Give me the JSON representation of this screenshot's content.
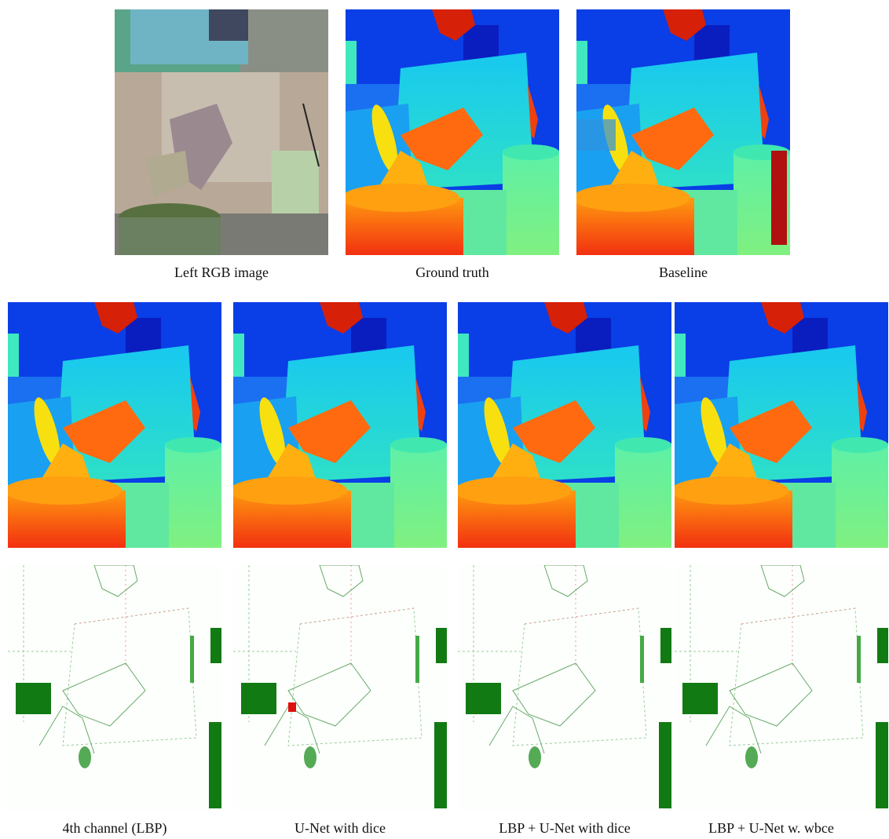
{
  "figure": {
    "top_row": {
      "captions": [
        "Left RGB image",
        "Ground truth",
        "Baseline"
      ]
    },
    "bottom_row": {
      "captions": [
        "4th channel (LBP)",
        "U-Net with dice",
        "LBP + U-Net with dice",
        "LBP + U-Net w. wbce"
      ]
    }
  }
}
